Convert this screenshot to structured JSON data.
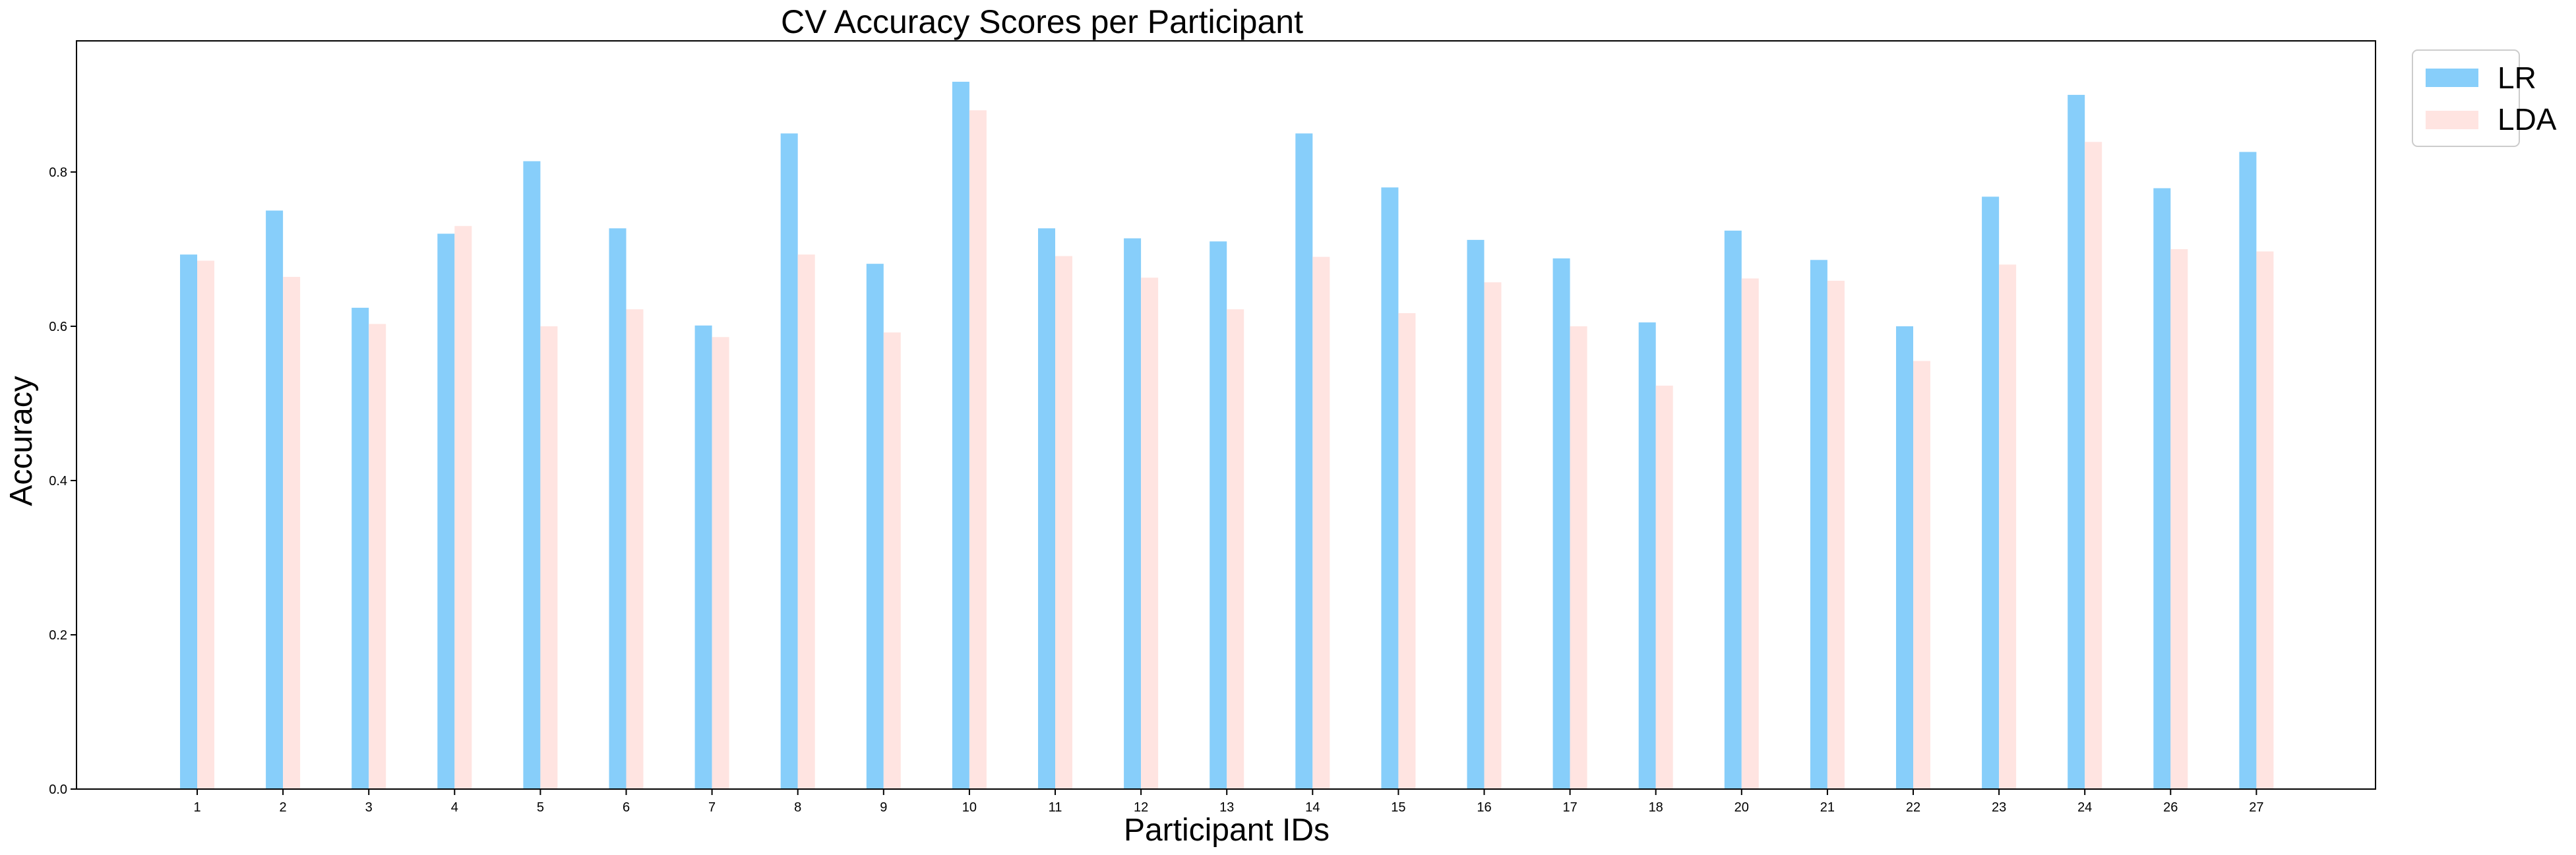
{
  "chart_data": {
    "type": "bar",
    "title": "CV Accuracy Scores per Participant",
    "xlabel": "Participant IDs",
    "ylabel": "Accuracy",
    "ylim": [
      0,
      0.97
    ],
    "yticks": [
      "0.0",
      "0.2",
      "0.4",
      "0.6",
      "0.8"
    ],
    "categories": [
      "1",
      "2",
      "3",
      "4",
      "5",
      "6",
      "7",
      "8",
      "9",
      "10",
      "11",
      "12",
      "13",
      "14",
      "15",
      "16",
      "17",
      "18",
      "20",
      "21",
      "22",
      "23",
      "24",
      "26",
      "27"
    ],
    "series": [
      {
        "name": "LR",
        "color": "#87CEFA",
        "values": [
          0.693,
          0.75,
          0.624,
          0.72,
          0.814,
          0.727,
          0.601,
          0.85,
          0.681,
          0.917,
          0.727,
          0.714,
          0.71,
          0.85,
          0.78,
          0.712,
          0.688,
          0.605,
          0.724,
          0.686,
          0.6,
          0.768,
          0.9,
          0.779,
          0.826
        ]
      },
      {
        "name": "LDA",
        "color": "#FFE4E1",
        "values": [
          0.685,
          0.664,
          0.603,
          0.73,
          0.6,
          0.622,
          0.586,
          0.693,
          0.592,
          0.88,
          0.691,
          0.663,
          0.622,
          0.69,
          0.617,
          0.657,
          0.6,
          0.523,
          0.662,
          0.659,
          0.555,
          0.68,
          0.839,
          0.7,
          0.697
        ]
      }
    ],
    "legend_position": "outside-top-right",
    "grid": false
  }
}
